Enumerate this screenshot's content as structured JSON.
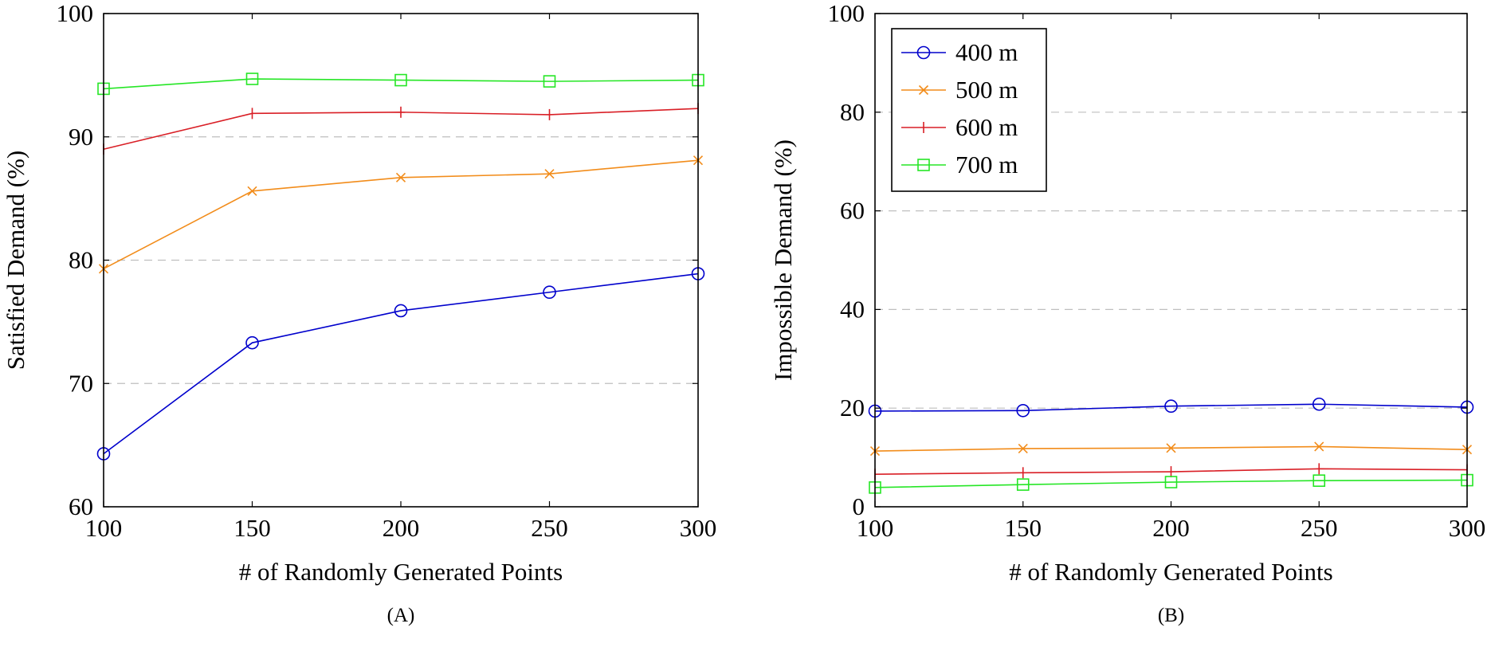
{
  "colors": {
    "series": [
      "#0000cc",
      "#f28c1a",
      "#d91f26",
      "#26e626"
    ],
    "grid": "#bfbfbf",
    "axis": "#000000"
  },
  "chart_data": [
    {
      "type": "line",
      "panel_label": "(A)",
      "xlabel": "# of Randomly Generated Points",
      "ylabel": "Satisfied Demand (%)",
      "xlim": [
        100,
        300
      ],
      "ylim": [
        60,
        100
      ],
      "xticks": [
        100,
        150,
        200,
        250,
        300
      ],
      "yticks": [
        60,
        70,
        80,
        90,
        100
      ],
      "grid_y": [
        70,
        80,
        90
      ],
      "grid": "horizontal dashed",
      "x": [
        100,
        150,
        200,
        250,
        300
      ],
      "series": [
        {
          "name": "400 m",
          "marker": "circle",
          "values": [
            64.3,
            73.3,
            75.9,
            77.4,
            78.9
          ]
        },
        {
          "name": "500 m",
          "marker": "x",
          "values": [
            79.3,
            85.6,
            86.7,
            87.0,
            88.1
          ]
        },
        {
          "name": "600 m",
          "marker": "plus",
          "values": [
            89.0,
            91.9,
            92.0,
            91.8,
            92.3
          ]
        },
        {
          "name": "700 m",
          "marker": "square",
          "values": [
            93.9,
            94.7,
            94.6,
            94.5,
            94.6
          ]
        }
      ]
    },
    {
      "type": "line",
      "panel_label": "(B)",
      "xlabel": "# of Randomly Generated Points",
      "ylabel": "Impossible Demand (%)",
      "xlim": [
        100,
        300
      ],
      "ylim": [
        0,
        100
      ],
      "xticks": [
        100,
        150,
        200,
        250,
        300
      ],
      "yticks": [
        0,
        20,
        40,
        60,
        80,
        100
      ],
      "grid_y": [
        20,
        40,
        60,
        80
      ],
      "grid": "horizontal dashed",
      "legend": "top-left",
      "x": [
        100,
        150,
        200,
        250,
        300
      ],
      "series": [
        {
          "name": "400 m",
          "marker": "circle",
          "values": [
            19.4,
            19.5,
            20.4,
            20.8,
            20.2
          ]
        },
        {
          "name": "500 m",
          "marker": "x",
          "values": [
            11.3,
            11.8,
            11.9,
            12.2,
            11.6
          ]
        },
        {
          "name": "600 m",
          "marker": "plus",
          "values": [
            6.6,
            6.9,
            7.1,
            7.7,
            7.5
          ]
        },
        {
          "name": "700 m",
          "marker": "square",
          "values": [
            3.9,
            4.5,
            5.0,
            5.3,
            5.4
          ]
        }
      ]
    }
  ]
}
